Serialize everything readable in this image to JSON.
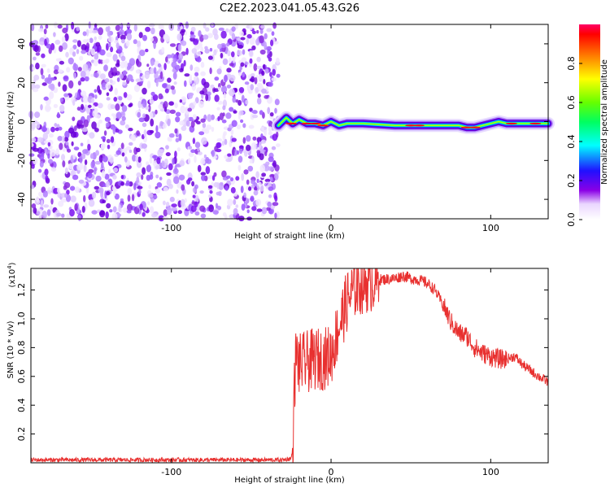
{
  "title": "C2E2.2023.041.05.43.G26",
  "chart_data": [
    {
      "type": "heatmap",
      "xlabel": "Height of straight line (km)",
      "ylabel": "Frequency (Hz)",
      "xlim": [
        -188,
        136
      ],
      "ylim": [
        -50,
        50
      ],
      "x_ticks": [
        -100,
        0,
        100
      ],
      "y_ticks": [
        -40,
        -20,
        0,
        20,
        40
      ],
      "noise_region_x": [
        -188,
        -33
      ],
      "signal_track": {
        "x": [
          -33,
          -28,
          -24,
          -20,
          -15,
          -10,
          -5,
          0,
          5,
          10,
          20,
          40,
          60,
          80,
          85,
          90,
          95,
          100,
          105,
          110,
          120,
          136
        ],
        "freq": [
          -2,
          2,
          -1,
          1,
          -1,
          -1,
          -2,
          0,
          -2,
          -1,
          -1,
          -2,
          -2,
          -2,
          -3,
          -3,
          -2,
          -1,
          0,
          -1,
          -1,
          -1
        ]
      },
      "colorbar": {
        "label": "Normalized spectral amplitude",
        "range": [
          0.0,
          1.0
        ],
        "ticks": [
          0.0,
          0.2,
          0.4,
          0.6,
          0.8
        ],
        "tick_labels": [
          "0.0",
          "0.2",
          "0.4",
          "0.6",
          "0.8"
        ]
      }
    },
    {
      "type": "line",
      "xlabel": "Height of straight line (km)",
      "ylabel": "SNR (10 * v/v)",
      "y_scale_note": "(x10",
      "y_scale_exp": "4",
      "xlim": [
        -188,
        136
      ],
      "ylim": [
        0,
        1.35
      ],
      "x_ticks": [
        -100,
        0,
        100
      ],
      "y_ticks": [
        0.2,
        0.4,
        0.6,
        0.8,
        1.0,
        1.2
      ],
      "y_tick_labels": [
        "0.2",
        "0.4",
        "0.6",
        "0.8",
        "1.0",
        "1.2"
      ],
      "series": [
        {
          "color": "#e8302f",
          "x": [
            -188,
            -150,
            -100,
            -60,
            -30,
            -25,
            -24,
            -23,
            -22,
            -20,
            -15,
            -10,
            -5,
            0,
            5,
            10,
            15,
            20,
            30,
            40,
            45,
            50,
            55,
            60,
            65,
            70,
            75,
            80,
            85,
            90,
            95,
            100,
            105,
            110,
            115,
            120,
            125,
            130,
            136
          ],
          "y": [
            0.02,
            0.02,
            0.02,
            0.02,
            0.02,
            0.03,
            0.1,
            0.5,
            0.75,
            0.68,
            0.7,
            0.72,
            0.72,
            0.75,
            0.95,
            1.12,
            1.22,
            1.25,
            1.27,
            1.28,
            1.3,
            1.28,
            1.27,
            1.25,
            1.2,
            1.1,
            0.98,
            0.9,
            0.88,
            0.8,
            0.76,
            0.74,
            0.72,
            0.72,
            0.74,
            0.68,
            0.64,
            0.6,
            0.56
          ]
        }
      ]
    }
  ]
}
